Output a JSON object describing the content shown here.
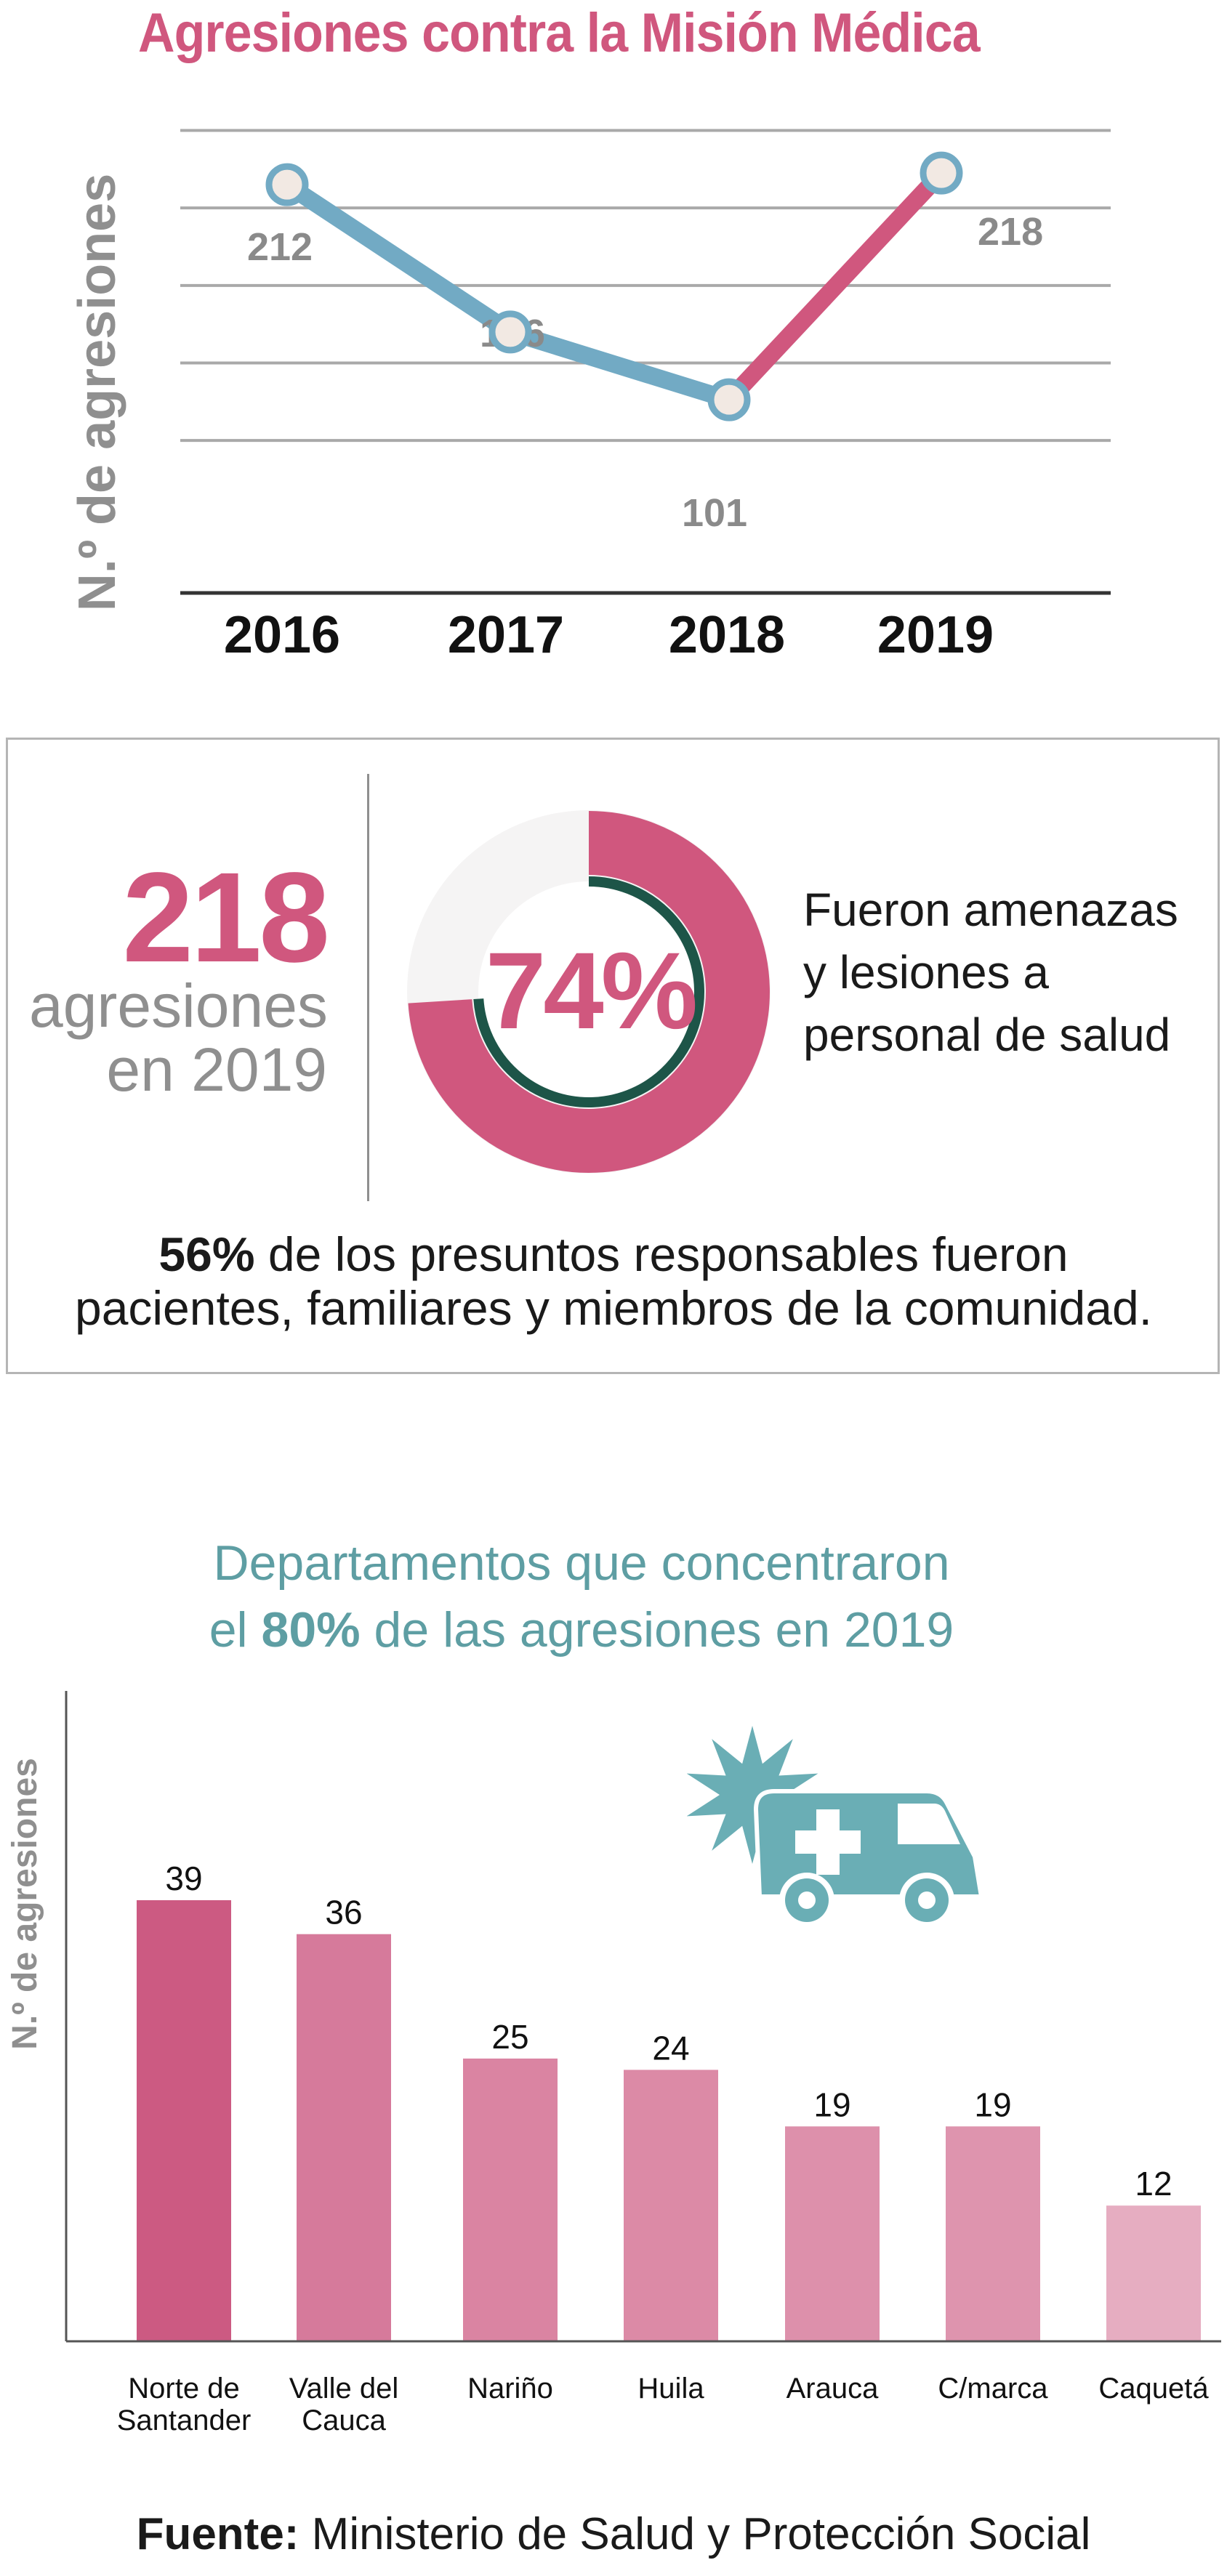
{
  "title": "Agresiones contra la Misión Médica",
  "chart_data": [
    {
      "type": "line",
      "ylabel": "N.º de agresiones",
      "categories": [
        "2016",
        "2017",
        "2018",
        "2019"
      ],
      "series": [
        {
          "values": [
            212,
            136,
            101,
            218
          ]
        }
      ],
      "data_labels": [
        "212",
        "136",
        "101",
        "218"
      ],
      "colors": {
        "line_main": "#72aac4",
        "line_last": "#d0577e",
        "marker_fill": "#f2e9e3",
        "grid": "#a9a9a9"
      },
      "ylim": [
        0,
        240
      ],
      "grid": true
    },
    {
      "type": "bar",
      "title_pre": "Departamentos que concentraron",
      "title_mid_pre": "el ",
      "title_mid_bold": "80%",
      "title_post": " de las agresiones en 2019",
      "ylabel": "N.º de agresiones",
      "categories": [
        [
          "Norte de",
          "Santander"
        ],
        [
          "Valle del",
          "Cauca"
        ],
        [
          "Nariño"
        ],
        [
          "Huila"
        ],
        [
          "Arauca"
        ],
        [
          "C/marca"
        ],
        [
          "Caquetá"
        ]
      ],
      "values": [
        39,
        36,
        25,
        24,
        19,
        19,
        12
      ],
      "data_labels": [
        "39",
        "36",
        "25",
        "24",
        "19",
        "19",
        "12"
      ],
      "bar_colors": [
        "#cc5a82",
        "#d67a9b",
        "#da84a2",
        "#dc8aa6",
        "#dd90ab",
        "#de94ae",
        "#e6adc1"
      ],
      "ylim": [
        0,
        40
      ],
      "grid": false
    }
  ],
  "stat_box": {
    "total_number": "218",
    "total_label_line1": "agresiones",
    "total_label_line2": "en 2019",
    "donut_percent_label": "74%",
    "donut_fraction": 0.74,
    "donut_text_line1": "Fueron amenazas",
    "donut_text_line2": "y lesiones a",
    "donut_text_line3": "personal de salud",
    "responsables_percent": "56%",
    "responsables_line1_rest": " de los presuntos responsables fueron",
    "responsables_line2": "pacientes, familiares y miembros de la comunidad."
  },
  "icon": {
    "name": "ambulance-icon",
    "color": "#6aaeb5"
  },
  "footer": {
    "label": "Fuente:",
    "text": " Ministerio de Salud y Protección Social"
  },
  "colors": {
    "pink": "#d0577e",
    "teal": "#5e9ea3",
    "gray": "#8f8f8f",
    "dark_green": "#1d5548"
  }
}
